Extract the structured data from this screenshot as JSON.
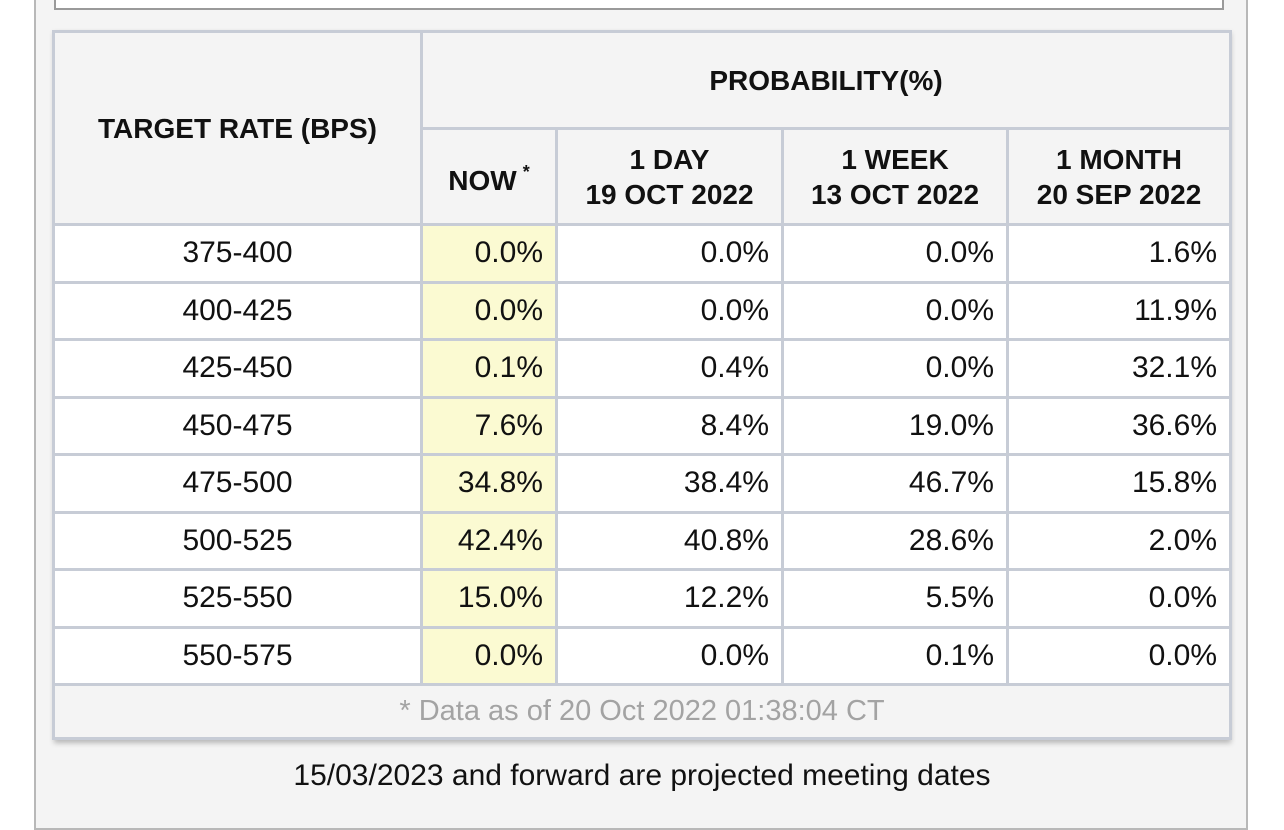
{
  "table": {
    "target_rate_header": "TARGET RATE (BPS)",
    "probability_header": "PROBABILITY(%)",
    "columns": [
      {
        "line1": "NOW",
        "line2": "",
        "star": "*"
      },
      {
        "line1": "1 DAY",
        "line2": "19 OCT 2022",
        "star": ""
      },
      {
        "line1": "1 WEEK",
        "line2": "13 OCT 2022",
        "star": ""
      },
      {
        "line1": "1 MONTH",
        "line2": "20 SEP 2022",
        "star": ""
      }
    ],
    "rows": [
      {
        "rate": "375-400",
        "now": "0.0%",
        "day": "0.0%",
        "week": "0.0%",
        "month": "1.6%"
      },
      {
        "rate": "400-425",
        "now": "0.0%",
        "day": "0.0%",
        "week": "0.0%",
        "month": "11.9%"
      },
      {
        "rate": "425-450",
        "now": "0.1%",
        "day": "0.4%",
        "week": "0.0%",
        "month": "32.1%"
      },
      {
        "rate": "450-475",
        "now": "7.6%",
        "day": "8.4%",
        "week": "19.0%",
        "month": "36.6%"
      },
      {
        "rate": "475-500",
        "now": "34.8%",
        "day": "38.4%",
        "week": "46.7%",
        "month": "15.8%"
      },
      {
        "rate": "500-525",
        "now": "42.4%",
        "day": "40.8%",
        "week": "28.6%",
        "month": "2.0%"
      },
      {
        "rate": "525-550",
        "now": "15.0%",
        "day": "12.2%",
        "week": "5.5%",
        "month": "0.0%"
      },
      {
        "rate": "550-575",
        "now": "0.0%",
        "day": "0.0%",
        "week": "0.1%",
        "month": "0.0%"
      }
    ],
    "footnote": "* Data as of 20 Oct 2022 01:38:04 CT"
  },
  "projected_note": "15/03/2023 and forward are projected meeting dates",
  "colors": {
    "now_highlight": "#fbfad2",
    "header_bg": "#f4f4f4",
    "border": "#c7ccd6",
    "footnote_text": "#a3a3a3"
  }
}
